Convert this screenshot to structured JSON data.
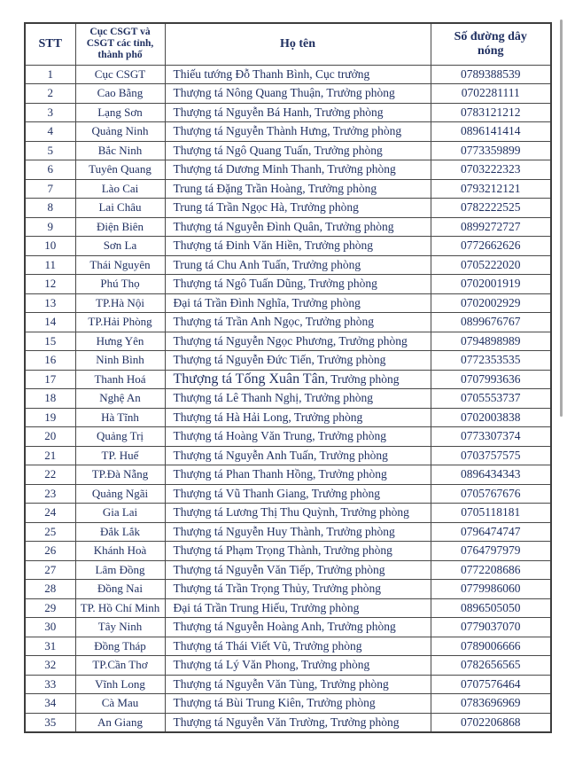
{
  "page": {
    "background": "#ffffff"
  },
  "scrollbar": {
    "color": "#ababab"
  },
  "table": {
    "headers": {
      "stt": "STT",
      "dept": "Cục CSGT và CSGT các tỉnh, thành phố",
      "name": "Họ tên",
      "phone": "Số đường dây nóng"
    },
    "text_color": "#203061",
    "border_color": "#4a4a4a",
    "rows": [
      {
        "stt": "1",
        "dept": "Cục CSGT",
        "name": "Thiếu tướng Đỗ Thanh Bình, Cục trưởng",
        "phone": "0789388539"
      },
      {
        "stt": "2",
        "dept": "Cao Bằng",
        "name": "Thượng tá Nông Quang Thuận, Trưởng phòng",
        "phone": "0702281111"
      },
      {
        "stt": "3",
        "dept": "Lạng Sơn",
        "name": "Thượng tá Nguyễn Bá Hanh, Trưởng phòng",
        "phone": "0783121212"
      },
      {
        "stt": "4",
        "dept": "Quảng Ninh",
        "name": "Thượng tá Nguyễn Thành Hưng, Trưởng phòng",
        "phone": "0896141414"
      },
      {
        "stt": "5",
        "dept": "Bắc Ninh",
        "name": "Thượng tá Ngô Quang Tuấn, Trưởng phòng",
        "phone": "0773359899"
      },
      {
        "stt": "6",
        "dept": "Tuyên Quang",
        "name": "Thượng tá Dương Minh Thanh, Trưởng phòng",
        "phone": "0703222323"
      },
      {
        "stt": "7",
        "dept": "Lào Cai",
        "name": "Trung tá Đặng Trần Hoàng, Trưởng phòng",
        "phone": "0793212121"
      },
      {
        "stt": "8",
        "dept": "Lai Châu",
        "name": "Trung tá Trần Ngọc Hà, Trưởng phòng",
        "phone": "0782222525"
      },
      {
        "stt": "9",
        "dept": "Điện Biên",
        "name": "Thượng tá Nguyễn Đình Quân, Trưởng phòng",
        "phone": "0899272727"
      },
      {
        "stt": "10",
        "dept": "Sơn La",
        "name": "Thượng tá Đinh Văn Hiền, Trưởng phòng",
        "phone": "0772662626"
      },
      {
        "stt": "11",
        "dept": "Thái Nguyên",
        "name": "Trung tá Chu Anh Tuấn, Trưởng phòng",
        "phone": "0705222020"
      },
      {
        "stt": "12",
        "dept": "Phú Thọ",
        "name": "Thượng tá Ngô Tuấn Dũng, Trưởng phòng",
        "phone": "0702001919"
      },
      {
        "stt": "13",
        "dept": "TP.Hà Nội",
        "name": "Đại tá Trần Đình Nghĩa, Trưởng phòng",
        "phone": "0702002929"
      },
      {
        "stt": "14",
        "dept": "TP.Hải Phòng",
        "name": "Thượng tá Trần Anh Ngọc, Trưởng phòng",
        "phone": "0899676767"
      },
      {
        "stt": "15",
        "dept": "Hưng Yên",
        "name": "Thượng tá Nguyễn Ngọc Phương, Trưởng phòng",
        "phone": "0794898989"
      },
      {
        "stt": "16",
        "dept": "Ninh Bình",
        "name": "Thượng tá Nguyễn Đức Tiến, Trưởng phòng",
        "phone": "0772353535"
      },
      {
        "stt": "17",
        "dept": "Thanh Hoá",
        "name_large": "Thượng tá Tống Xuân Tân",
        "name_rest": ", Trưởng phòng",
        "phone": "0707993636"
      },
      {
        "stt": "18",
        "dept": "Nghệ An",
        "name": "Thượng tá Lê Thanh Nghị, Trưởng phòng",
        "phone": "0705553737"
      },
      {
        "stt": "19",
        "dept": "Hà Tĩnh",
        "name": "Thượng tá Hà Hải Long, Trưởng phòng",
        "phone": "0702003838"
      },
      {
        "stt": "20",
        "dept": "Quảng Trị",
        "name": "Thượng tá Hoàng Văn Trung, Trưởng phòng",
        "phone": "0773307374"
      },
      {
        "stt": "21",
        "dept": "TP. Huế",
        "name": "Thượng tá Nguyễn Anh Tuấn, Trưởng phòng",
        "phone": "0703757575"
      },
      {
        "stt": "22",
        "dept": "TP.Đà Nẵng",
        "name": "Thượng tá Phan Thanh Hồng, Trưởng phòng",
        "phone": "0896434343"
      },
      {
        "stt": "23",
        "dept": "Quảng Ngãi",
        "name": "Thượng tá Vũ Thanh Giang, Trưởng phòng",
        "phone": "0705767676"
      },
      {
        "stt": "24",
        "dept": "Gia Lai",
        "name": "Thượng tá Lương Thị Thu Quỳnh, Trưởng phòng",
        "phone": "0705118181"
      },
      {
        "stt": "25",
        "dept": "Đắk Lắk",
        "name": "Thượng tá Nguyễn Huy Thành, Trưởng phòng",
        "phone": "0796474747"
      },
      {
        "stt": "26",
        "dept": "Khánh Hoà",
        "name": "Thượng tá Phạm Trọng Thành, Trưởng phòng",
        "phone": "0764797979"
      },
      {
        "stt": "27",
        "dept": "Lâm Đồng",
        "name": "Thượng tá Nguyễn Văn Tiếp, Trưởng phòng",
        "phone": "0772208686"
      },
      {
        "stt": "28",
        "dept": "Đồng Nai",
        "name": "Thượng tá Trần Trọng Thủy, Trưởng phòng",
        "phone": "0779986060"
      },
      {
        "stt": "29",
        "dept": "TP. Hồ Chí Minh",
        "name": "Đại tá Trần Trung Hiếu, Trưởng phòng",
        "phone": "0896505050"
      },
      {
        "stt": "30",
        "dept": "Tây Ninh",
        "name": "Thượng tá Nguyễn Hoàng Anh, Trưởng phòng",
        "phone": "0779037070"
      },
      {
        "stt": "31",
        "dept": "Đồng Tháp",
        "name": "Thượng tá Thái Viết Vũ, Trưởng phòng",
        "phone": "0789006666"
      },
      {
        "stt": "32",
        "dept": "TP.Cần Thơ",
        "name": "Thượng tá Lý Văn Phong, Trưởng phòng",
        "phone": "0782656565"
      },
      {
        "stt": "33",
        "dept": "Vĩnh Long",
        "name": "Thượng tá Nguyễn Văn Tùng, Trưởng phòng",
        "phone": "0707576464"
      },
      {
        "stt": "34",
        "dept": "Cà Mau",
        "name": "Thượng tá Bùi Trung Kiên, Trưởng phòng",
        "phone": "0783696969"
      },
      {
        "stt": "35",
        "dept": "An Giang",
        "name": "Thượng tá Nguyễn Văn Trường, Trưởng phòng",
        "phone": "0702206868"
      }
    ]
  }
}
